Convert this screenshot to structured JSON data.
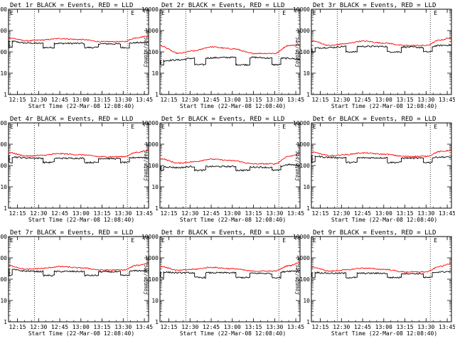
{
  "chart_data": {
    "type": "line",
    "shared": {
      "xlabel": "Start Time (22-Mar-08 12:08:40)",
      "ylabel": "Counts/sec",
      "x_ticks": [
        "12:15",
        "12:30",
        "12:45",
        "13:00",
        "13:15",
        "13:30",
        "13:45"
      ],
      "x_tick_minutes": [
        15,
        30,
        45,
        60,
        75,
        90,
        105
      ],
      "xlim_minutes": [
        8.67,
        108
      ],
      "y_ticks": [
        "1",
        "10",
        "100",
        "1000",
        "10000"
      ],
      "y_tick_values": [
        1,
        10,
        100,
        1000,
        10000
      ],
      "ylim": [
        1,
        10000
      ],
      "y_scale": "log",
      "vlines_minutes": [
        27,
        93
      ],
      "marker_label": "E",
      "marker_minute": 95.5,
      "colors": {
        "events": "#000000",
        "lld": "#ff0000"
      }
    },
    "panels": [
      {
        "title": "Det 1r BLACK = Events, RED = LLD",
        "red": {
          "ctrl": [
            [
              8.7,
              450
            ],
            [
              22,
              330
            ],
            [
              32,
              360
            ],
            [
              45,
              420
            ],
            [
              60,
              380
            ],
            [
              75,
              300
            ],
            [
              90,
              300
            ],
            [
              100,
              470
            ],
            [
              108,
              560
            ]
          ]
        },
        "black": {
          "ctrl": [
            [
              8.7,
              320
            ],
            [
              22,
              260
            ],
            [
              32,
              250
            ],
            [
              60,
              250
            ],
            [
              75,
              240
            ],
            [
              90,
              235
            ],
            [
              100,
              270
            ],
            [
              108,
              270
            ]
          ],
          "dips": [
            [
              8.7,
              11,
              160
            ],
            [
              33,
              41,
              160
            ],
            [
              62,
              72,
              160
            ],
            [
              88,
              94,
              160
            ]
          ]
        }
      },
      {
        "title": "Det 2r BLACK = Events, RED = LLD",
        "red": {
          "ctrl": [
            [
              8.7,
              190
            ],
            [
              22,
              85
            ],
            [
              32,
              110
            ],
            [
              45,
              170
            ],
            [
              60,
              140
            ],
            [
              75,
              85
            ],
            [
              90,
              85
            ],
            [
              100,
              200
            ],
            [
              108,
              210
            ]
          ]
        },
        "black": {
          "ctrl": [
            [
              8.7,
              38
            ],
            [
              22,
              42
            ],
            [
              32,
              50
            ],
            [
              60,
              55
            ],
            [
              75,
              55
            ],
            [
              90,
              50
            ],
            [
              100,
              50
            ],
            [
              108,
              45
            ]
          ],
          "dips": [
            [
              8.7,
              11,
              25
            ],
            [
              33,
              41,
              25
            ],
            [
              62,
              72,
              25
            ],
            [
              88,
              94,
              25
            ]
          ]
        }
      },
      {
        "title": "Det 3r BLACK = Events, RED = LLD",
        "red": {
          "ctrl": [
            [
              8.7,
              330
            ],
            [
              22,
              200
            ],
            [
              32,
              240
            ],
            [
              45,
              320
            ],
            [
              60,
              260
            ],
            [
              75,
              200
            ],
            [
              90,
              200
            ],
            [
              100,
              360
            ],
            [
              108,
              460
            ]
          ]
        },
        "black": {
          "ctrl": [
            [
              8.7,
              150
            ],
            [
              22,
              160
            ],
            [
              32,
              180
            ],
            [
              60,
              180
            ],
            [
              75,
              170
            ],
            [
              90,
              160
            ],
            [
              100,
              200
            ],
            [
              108,
              210
            ]
          ],
          "dips": [
            [
              8.7,
              11,
              100
            ],
            [
              33,
              41,
              100
            ],
            [
              62,
              72,
              100
            ],
            [
              88,
              94,
              100
            ]
          ]
        }
      },
      {
        "title": "Det 4r BLACK = Events, RED = LLD",
        "red": {
          "ctrl": [
            [
              8.7,
              400
            ],
            [
              22,
              280
            ],
            [
              32,
              300
            ],
            [
              45,
              360
            ],
            [
              60,
              320
            ],
            [
              75,
              260
            ],
            [
              90,
              260
            ],
            [
              100,
              420
            ],
            [
              108,
              520
            ]
          ]
        },
        "black": {
          "ctrl": [
            [
              8.7,
              260
            ],
            [
              22,
              230
            ],
            [
              32,
              220
            ],
            [
              60,
              220
            ],
            [
              75,
              215
            ],
            [
              90,
              210
            ],
            [
              100,
              240
            ],
            [
              108,
              240
            ]
          ],
          "dips": [
            [
              8.7,
              11,
              140
            ],
            [
              33,
              41,
              140
            ],
            [
              62,
              72,
              140
            ],
            [
              88,
              94,
              140
            ]
          ]
        }
      },
      {
        "title": "Det 5r BLACK = Events, RED = LLD",
        "red": {
          "ctrl": [
            [
              8.7,
              210
            ],
            [
              22,
              130
            ],
            [
              32,
              150
            ],
            [
              45,
              200
            ],
            [
              60,
              170
            ],
            [
              75,
              120
            ],
            [
              90,
              120
            ],
            [
              100,
              270
            ],
            [
              108,
              360
            ]
          ]
        },
        "black": {
          "ctrl": [
            [
              8.7,
              90
            ],
            [
              22,
              80
            ],
            [
              32,
              90
            ],
            [
              60,
              90
            ],
            [
              75,
              85
            ],
            [
              90,
              80
            ],
            [
              100,
              110
            ],
            [
              108,
              100
            ]
          ],
          "dips": [
            [
              8.7,
              11,
              60
            ],
            [
              33,
              41,
              60
            ],
            [
              62,
              72,
              60
            ],
            [
              88,
              94,
              60
            ]
          ]
        }
      },
      {
        "title": "Det 6r BLACK = Events, RED = LLD",
        "red": {
          "ctrl": [
            [
              8.7,
              420
            ],
            [
              22,
              290
            ],
            [
              32,
              320
            ],
            [
              45,
              390
            ],
            [
              60,
              340
            ],
            [
              75,
              270
            ],
            [
              90,
              270
            ],
            [
              100,
              450
            ],
            [
              108,
              520
            ]
          ]
        },
        "black": {
          "ctrl": [
            [
              8.7,
              280
            ],
            [
              22,
              240
            ],
            [
              32,
              230
            ],
            [
              60,
              230
            ],
            [
              75,
              225
            ],
            [
              90,
              220
            ],
            [
              100,
              250
            ],
            [
              108,
              250
            ]
          ],
          "dips": [
            [
              8.7,
              11,
              140
            ],
            [
              33,
              41,
              140
            ],
            [
              62,
              72,
              140
            ],
            [
              88,
              94,
              140
            ]
          ]
        }
      },
      {
        "title": "Det 7r BLACK = Events, RED = LLD",
        "red": {
          "ctrl": [
            [
              8.7,
              430
            ],
            [
              22,
              290
            ],
            [
              32,
              320
            ],
            [
              45,
              390
            ],
            [
              60,
              340
            ],
            [
              75,
              270
            ],
            [
              90,
              270
            ],
            [
              100,
              450
            ],
            [
              108,
              560
            ]
          ]
        },
        "black": {
          "ctrl": [
            [
              8.7,
              290
            ],
            [
              22,
              240
            ],
            [
              32,
              230
            ],
            [
              60,
              230
            ],
            [
              75,
              225
            ],
            [
              90,
              220
            ],
            [
              100,
              250
            ],
            [
              108,
              250
            ]
          ],
          "dips": [
            [
              8.7,
              11,
              150
            ],
            [
              33,
              41,
              150
            ],
            [
              62,
              72,
              150
            ],
            [
              88,
              94,
              150
            ]
          ]
        }
      },
      {
        "title": "Det 8r BLACK = Events, RED = LLD",
        "red": {
          "ctrl": [
            [
              8.7,
              400
            ],
            [
              22,
              260
            ],
            [
              32,
              290
            ],
            [
              45,
              360
            ],
            [
              60,
              310
            ],
            [
              75,
              240
            ],
            [
              90,
              240
            ],
            [
              100,
              430
            ],
            [
              108,
              600
            ]
          ]
        },
        "black": {
          "ctrl": [
            [
              8.7,
              220
            ],
            [
              22,
              200
            ],
            [
              32,
              200
            ],
            [
              60,
              200
            ],
            [
              75,
              190
            ],
            [
              90,
              185
            ],
            [
              100,
              240
            ],
            [
              108,
              250
            ]
          ],
          "dips": [
            [
              8.7,
              11,
              120
            ],
            [
              33,
              41,
              120
            ],
            [
              62,
              72,
              120
            ],
            [
              88,
              94,
              120
            ]
          ]
        }
      },
      {
        "title": "Det 9r BLACK = Events, RED = LLD",
        "red": {
          "ctrl": [
            [
              8.7,
              370
            ],
            [
              22,
              240
            ],
            [
              32,
              270
            ],
            [
              45,
              330
            ],
            [
              60,
              290
            ],
            [
              75,
              220
            ],
            [
              90,
              220
            ],
            [
              100,
              400
            ],
            [
              108,
              550
            ]
          ]
        },
        "black": {
          "ctrl": [
            [
              8.7,
              210
            ],
            [
              22,
              190
            ],
            [
              32,
              190
            ],
            [
              60,
              190
            ],
            [
              75,
              185
            ],
            [
              90,
              180
            ],
            [
              100,
              220
            ],
            [
              108,
              230
            ]
          ],
          "dips": [
            [
              8.7,
              11,
              120
            ],
            [
              33,
              41,
              120
            ],
            [
              62,
              72,
              120
            ],
            [
              88,
              94,
              120
            ]
          ]
        }
      }
    ]
  }
}
